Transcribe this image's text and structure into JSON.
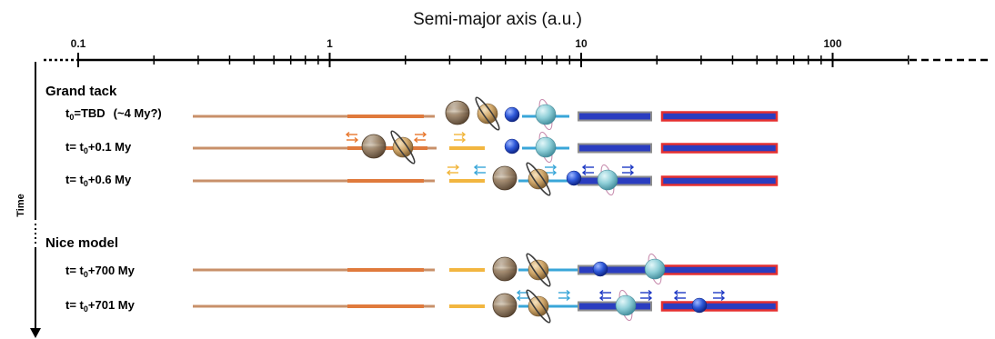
{
  "axis": {
    "title": "Semi-major axis (a.u.)",
    "ticks": [
      {
        "label": "0.1",
        "value": 0.1
      },
      {
        "label": "1",
        "value": 1
      },
      {
        "label": "10",
        "value": 10
      },
      {
        "label": "100",
        "value": 100
      }
    ],
    "scale": "log"
  },
  "time_axis": {
    "label": "Time"
  },
  "sections": [
    {
      "title": "Grand tack",
      "rows": [
        {
          "prefix": "t",
          "sub": "0",
          "suffix": "=TBD",
          "note": "(~4 My?)"
        },
        {
          "prefix": "t= t",
          "sub": "0",
          "suffix": "+0.1 My",
          "note": ""
        },
        {
          "prefix": "t= t",
          "sub": "0",
          "suffix": "+0.6 My",
          "note": ""
        }
      ]
    },
    {
      "title": "Nice model",
      "rows": [
        {
          "prefix": "t= t",
          "sub": "0",
          "suffix": "+700 My",
          "note": ""
        },
        {
          "prefix": "t= t",
          "sub": "0",
          "suffix": "+701 My",
          "note": ""
        }
      ]
    }
  ],
  "colors": {
    "inner_disk": "#c8906a",
    "inner_band": "#e07a3c",
    "asteroid_band": "#f2b640",
    "giant_band": "#39a6d8",
    "kuiper_fill": "#2a3dc0",
    "kuiper_edge": "#8e8e8e",
    "outer_fill": "#2a3dc0",
    "outer_edge": "#e53030",
    "arrow_orange": "#e8762c",
    "arrow_yellow": "#f1b53a",
    "arrow_cyan": "#39a6d8",
    "arrow_blue": "#1f3ac4"
  },
  "icons": [
    "jupiter-icon",
    "saturn-icon",
    "uranus-icon",
    "neptune-icon"
  ]
}
